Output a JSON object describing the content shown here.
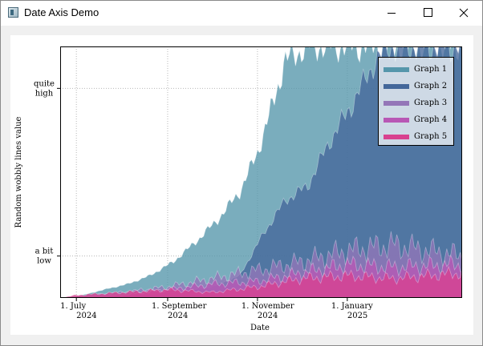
{
  "window": {
    "title": "Date Axis Demo"
  },
  "controls": {
    "minimize": "minimize-icon",
    "maximize": "maximize-icon",
    "close": "close-icon"
  },
  "chart_data": {
    "type": "area",
    "title": "",
    "xlabel": "Date",
    "ylabel": "Random wobbly lines value",
    "x_ticks": [
      {
        "date": "2024-07-01",
        "line1": "1. July",
        "line2": "2024"
      },
      {
        "date": "2024-09-01",
        "line1": "1. September",
        "line2": "2024"
      },
      {
        "date": "2024-11-01",
        "line1": "1. November",
        "line2": "2024"
      },
      {
        "date": "2025-01-01",
        "line1": "1. January",
        "line2": "2025"
      }
    ],
    "y_ticks": [
      {
        "value": 0.2,
        "line1": "a bit",
        "line2": "low"
      },
      {
        "value": 0.8,
        "line1": "quite",
        "line2": "high"
      }
    ],
    "xlim": [
      "2024-06-20",
      "2025-03-20"
    ],
    "ylim": [
      0.05,
      0.95
    ],
    "grid": true,
    "legend_position": "top-right",
    "series": [
      {
        "name": "Graph 1",
        "color": "#5596ab",
        "points": [
          [
            "2024-06-20",
            0.05
          ],
          [
            "2024-07-05",
            0.06
          ],
          [
            "2024-07-20",
            0.08
          ],
          [
            "2024-08-05",
            0.1
          ],
          [
            "2024-08-20",
            0.13
          ],
          [
            "2024-09-05",
            0.18
          ],
          [
            "2024-09-20",
            0.25
          ],
          [
            "2024-10-05",
            0.33
          ],
          [
            "2024-10-20",
            0.43
          ],
          [
            "2024-11-01",
            0.57
          ],
          [
            "2024-11-10",
            0.72
          ],
          [
            "2024-11-20",
            0.9
          ],
          [
            "2024-12-05",
            0.95
          ],
          [
            "2025-03-20",
            0.95
          ]
        ]
      },
      {
        "name": "Graph 2",
        "color": "#44679a",
        "points": [
          [
            "2024-06-20",
            0.05
          ],
          [
            "2024-08-05",
            0.06
          ],
          [
            "2024-09-05",
            0.07
          ],
          [
            "2024-10-01",
            0.09
          ],
          [
            "2024-10-20",
            0.13
          ],
          [
            "2024-11-05",
            0.28
          ],
          [
            "2024-11-20",
            0.4
          ],
          [
            "2024-12-05",
            0.45
          ],
          [
            "2024-12-20",
            0.61
          ],
          [
            "2025-01-05",
            0.75
          ],
          [
            "2025-01-20",
            0.9
          ],
          [
            "2025-01-31",
            0.95
          ],
          [
            "2025-03-20",
            0.95
          ]
        ]
      },
      {
        "name": "Graph 3",
        "color": "#9476b8",
        "points": [
          [
            "2024-06-20",
            0.05
          ],
          [
            "2024-08-01",
            0.07
          ],
          [
            "2024-09-01",
            0.09
          ],
          [
            "2024-10-01",
            0.12
          ],
          [
            "2024-11-01",
            0.15
          ],
          [
            "2024-12-01",
            0.18
          ],
          [
            "2025-01-01",
            0.22
          ],
          [
            "2025-02-01",
            0.24
          ],
          [
            "2025-03-20",
            0.2
          ]
        ]
      },
      {
        "name": "Graph 4",
        "color": "#b857b5",
        "points": [
          [
            "2024-06-20",
            0.05
          ],
          [
            "2024-08-01",
            0.06
          ],
          [
            "2024-09-01",
            0.08
          ],
          [
            "2024-10-01",
            0.1
          ],
          [
            "2024-11-01",
            0.11
          ],
          [
            "2024-12-01",
            0.14
          ],
          [
            "2025-01-01",
            0.17
          ],
          [
            "2025-02-01",
            0.16
          ],
          [
            "2025-03-20",
            0.17
          ]
        ]
      },
      {
        "name": "Graph 5",
        "color": "#d8418f",
        "points": [
          [
            "2024-06-20",
            0.05
          ],
          [
            "2024-07-01",
            0.06
          ],
          [
            "2024-08-01",
            0.07
          ],
          [
            "2024-09-01",
            0.08
          ],
          [
            "2024-10-01",
            0.07
          ],
          [
            "2024-11-01",
            0.09
          ],
          [
            "2024-12-01",
            0.12
          ],
          [
            "2025-01-01",
            0.13
          ],
          [
            "2025-02-01",
            0.12
          ],
          [
            "2025-03-20",
            0.14
          ]
        ]
      }
    ]
  }
}
